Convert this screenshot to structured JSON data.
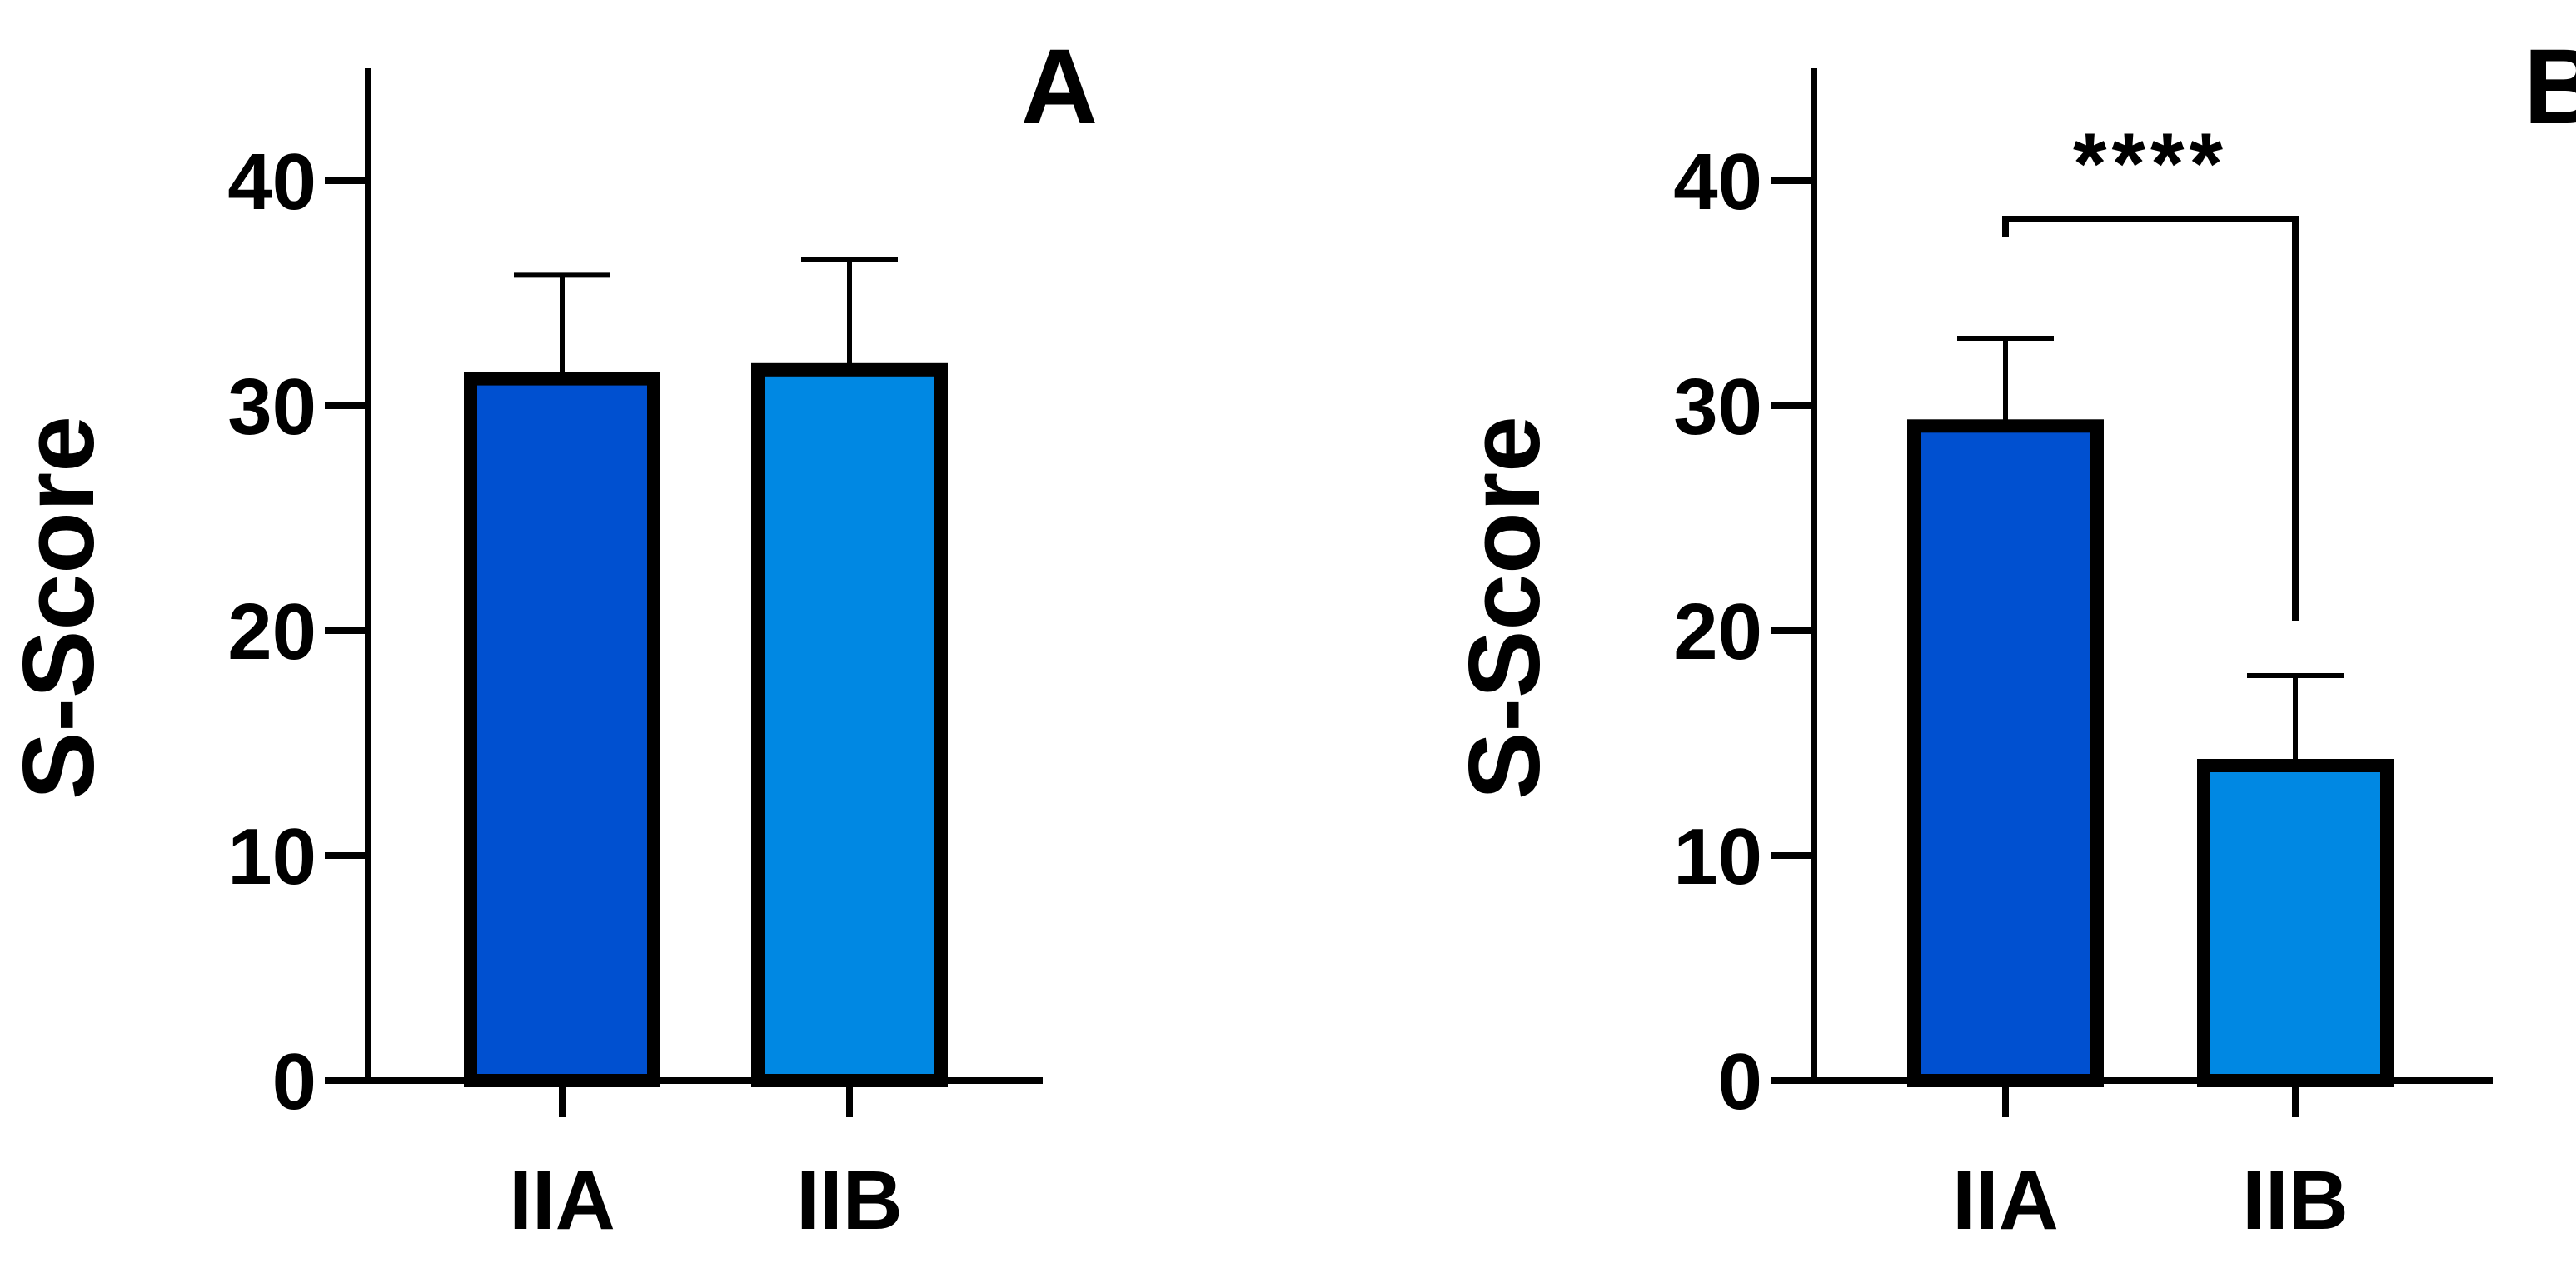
{
  "chart_data": [
    {
      "panel": "A",
      "type": "bar",
      "categories": [
        "IIA",
        "IIB"
      ],
      "values": [
        31.2,
        31.6
      ],
      "errors": [
        4.6,
        4.9
      ],
      "ylabel": "S-Score",
      "ylim": [
        0,
        45
      ],
      "yticks": [
        "0",
        "10",
        "20",
        "30",
        "40"
      ],
      "colors": [
        "#0050D0",
        "#0088E3"
      ],
      "significance": null
    },
    {
      "panel": "B",
      "type": "bar",
      "categories": [
        "IIA",
        "IIB"
      ],
      "values": [
        29.1,
        14.0
      ],
      "errors": [
        3.9,
        4.0
      ],
      "ylabel": "S-Score",
      "ylim": [
        0,
        45
      ],
      "yticks": [
        "0",
        "10",
        "20",
        "30",
        "40"
      ],
      "colors": [
        "#0050D0",
        "#0088E3"
      ],
      "significance": {
        "label": "****",
        "between": [
          "IIA",
          "IIB"
        ]
      }
    }
  ]
}
